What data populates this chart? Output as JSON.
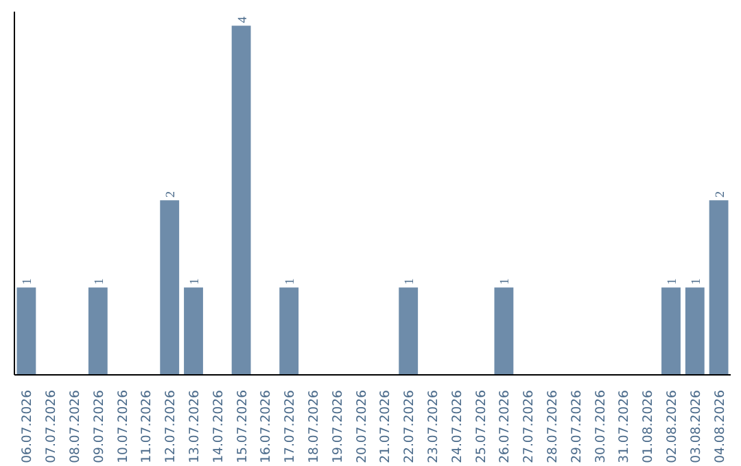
{
  "chart_data": {
    "type": "bar",
    "categories": [
      "06.07.2026",
      "07.07.2026",
      "08.07.2026",
      "09.07.2026",
      "10.07.2026",
      "11.07.2026",
      "12.07.2026",
      "13.07.2026",
      "14.07.2026",
      "15.07.2026",
      "16.07.2026",
      "17.07.2026",
      "18.07.2026",
      "19.07.2026",
      "20.07.2026",
      "21.07.2026",
      "22.07.2026",
      "23.07.2026",
      "24.07.2026",
      "25.07.2026",
      "26.07.2026",
      "27.07.2026",
      "28.07.2026",
      "29.07.2026",
      "30.07.2026",
      "31.07.2026",
      "01.08.2026",
      "02.08.2026",
      "03.08.2026",
      "04.08.2026"
    ],
    "values": [
      1,
      0,
      0,
      1,
      0,
      0,
      2,
      1,
      0,
      4,
      0,
      1,
      0,
      0,
      0,
      0,
      1,
      0,
      0,
      0,
      1,
      0,
      0,
      0,
      0,
      0,
      0,
      1,
      1,
      2
    ],
    "value_labels": [
      "1",
      null,
      null,
      "1",
      null,
      null,
      "2",
      "1",
      null,
      "4",
      null,
      "1",
      null,
      null,
      null,
      null,
      "1",
      null,
      null,
      null,
      "1",
      null,
      null,
      null,
      null,
      null,
      null,
      "1",
      "1",
      "2"
    ],
    "color": "#6e8caa",
    "grid": false,
    "tick_labels": "x"
  }
}
